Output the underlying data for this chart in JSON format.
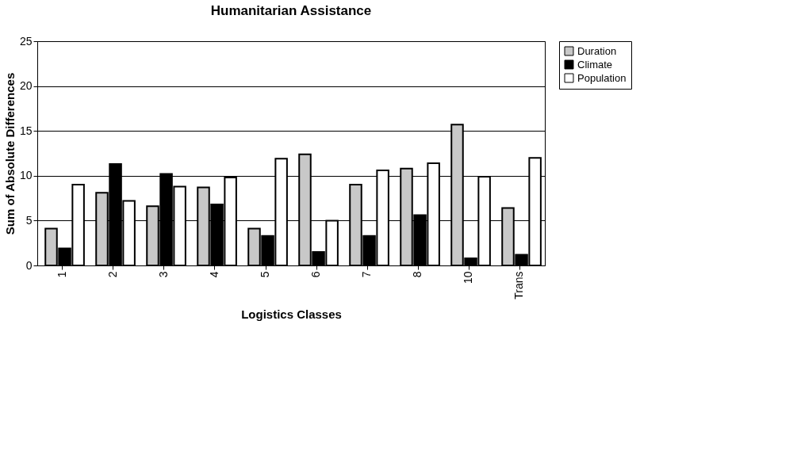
{
  "chart_data": {
    "type": "bar",
    "title": "Humanitarian Assistance",
    "xlabel": "Logistics Classes",
    "ylabel": "Sum of Absolute Differences",
    "categories": [
      "1",
      "2",
      "3",
      "4",
      "5",
      "6",
      "7",
      "8",
      "10",
      "Trans"
    ],
    "series": [
      {
        "name": "Duration",
        "color": "#c8c8c8",
        "values": [
          4.1,
          8.1,
          6.6,
          8.7,
          4.1,
          12.4,
          9.0,
          10.8,
          15.7,
          6.4
        ]
      },
      {
        "name": "Climate",
        "color": "#000000",
        "values": [
          1.9,
          11.3,
          10.2,
          6.8,
          3.3,
          1.5,
          3.3,
          5.6,
          0.8,
          1.2
        ]
      },
      {
        "name": "Population",
        "color": "#ffffff",
        "values": [
          9.0,
          7.2,
          8.8,
          9.8,
          11.9,
          5.0,
          10.6,
          11.4,
          9.9,
          12.0
        ]
      }
    ],
    "ylim": [
      0,
      25
    ],
    "yticks": [
      0,
      5,
      10,
      15,
      20,
      25
    ],
    "grid": "y",
    "legend": "right"
  }
}
